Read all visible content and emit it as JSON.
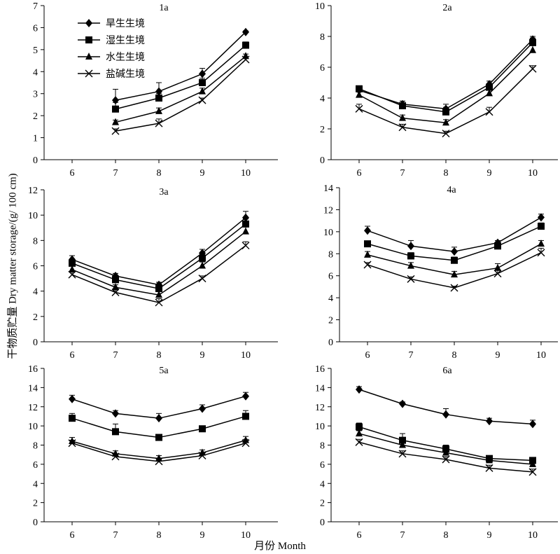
{
  "y_axis_label": "干物质贮量 Dry matter storage/(g/ 100 cm)",
  "x_axis_label": "月份 Month",
  "chart_data": [
    {
      "type": "line",
      "title": "1a",
      "x": [
        6,
        7,
        8,
        9,
        10
      ],
      "ylim": [
        0,
        7
      ],
      "yticks": [
        0,
        1,
        2,
        3,
        4,
        5,
        6,
        7
      ],
      "legend": "top-left",
      "series": [
        {
          "name": "旱生生境",
          "marker": "diamond",
          "values": [
            null,
            2.7,
            3.1,
            3.9,
            5.8
          ],
          "errors": [
            null,
            0.5,
            0.4,
            0.25,
            0.05
          ]
        },
        {
          "name": "湿生生境",
          "marker": "square",
          "values": [
            null,
            2.3,
            2.8,
            3.5,
            5.2
          ],
          "errors": [
            null,
            0.3,
            0.2,
            0.2,
            0.15
          ]
        },
        {
          "name": "水生生境",
          "marker": "triangle",
          "values": [
            null,
            1.7,
            2.2,
            3.1,
            4.7
          ],
          "errors": [
            null,
            0.1,
            0.15,
            0.15,
            0.1
          ]
        },
        {
          "name": "盐碱生境",
          "marker": "cross",
          "values": [
            null,
            1.3,
            1.65,
            2.7,
            4.55
          ],
          "errors": [
            null,
            0.1,
            0.2,
            0.1,
            0.1
          ]
        }
      ]
    },
    {
      "type": "line",
      "title": "2a",
      "x": [
        6,
        7,
        8,
        9,
        10
      ],
      "ylim": [
        0,
        10
      ],
      "yticks": [
        0,
        2,
        4,
        6,
        8,
        10
      ],
      "series": [
        {
          "name": "旱生生境",
          "marker": "diamond",
          "values": [
            4.5,
            3.6,
            3.3,
            4.9,
            7.8
          ],
          "errors": [
            0.25,
            0.2,
            0.3,
            0.2,
            0.2
          ]
        },
        {
          "name": "湿生生境",
          "marker": "square",
          "values": [
            4.6,
            3.5,
            3.1,
            4.7,
            7.6
          ],
          "errors": [
            0.2,
            0.3,
            0.3,
            0.2,
            0.3
          ]
        },
        {
          "name": "水生生境",
          "marker": "triangle",
          "values": [
            4.2,
            2.7,
            2.4,
            4.3,
            7.1
          ],
          "errors": [
            0.2,
            0.2,
            0.2,
            0.2,
            0.3
          ]
        },
        {
          "name": "盐碱生境",
          "marker": "cross",
          "values": [
            3.3,
            2.1,
            1.7,
            3.1,
            5.9
          ],
          "errors": [
            0.3,
            0.2,
            0.15,
            0.3,
            0.2
          ]
        }
      ]
    },
    {
      "type": "line",
      "title": "3a",
      "x": [
        6,
        7,
        8,
        9,
        10
      ],
      "ylim": [
        0,
        12
      ],
      "yticks": [
        0,
        2,
        4,
        6,
        8,
        10,
        12
      ],
      "series": [
        {
          "name": "旱生生境",
          "marker": "diamond",
          "values": [
            6.5,
            5.2,
            4.5,
            7.0,
            9.8
          ],
          "errors": [
            0.3,
            0.2,
            0.2,
            0.3,
            0.5
          ]
        },
        {
          "name": "湿生生境",
          "marker": "square",
          "values": [
            6.2,
            4.9,
            4.2,
            6.6,
            9.3
          ],
          "errors": [
            0.3,
            0.2,
            0.3,
            0.3,
            0.4
          ]
        },
        {
          "name": "水生生境",
          "marker": "triangle",
          "values": [
            5.7,
            4.3,
            3.7,
            6.0,
            8.7
          ],
          "errors": [
            0.3,
            0.2,
            0.3,
            0.3,
            0.4
          ]
        },
        {
          "name": "盐碱生境",
          "marker": "cross",
          "values": [
            5.3,
            3.9,
            3.1,
            5.0,
            7.6
          ],
          "errors": [
            0.2,
            0.2,
            0.3,
            0.2,
            0.3
          ]
        }
      ]
    },
    {
      "type": "line",
      "title": "4a",
      "x": [
        6,
        7,
        8,
        9,
        10
      ],
      "ylim": [
        0,
        14
      ],
      "yticks": [
        0,
        2,
        4,
        6,
        8,
        10,
        12,
        14
      ],
      "series": [
        {
          "name": "旱生生境",
          "marker": "diamond",
          "values": [
            10.1,
            8.7,
            8.2,
            9.0,
            11.3
          ],
          "errors": [
            0.4,
            0.5,
            0.4,
            0.2,
            0.3
          ]
        },
        {
          "name": "湿生生境",
          "marker": "square",
          "values": [
            8.9,
            7.8,
            7.4,
            8.7,
            10.5
          ],
          "errors": [
            0.2,
            0.3,
            0.3,
            0.3,
            0.3
          ]
        },
        {
          "name": "水生生境",
          "marker": "triangle",
          "values": [
            7.9,
            6.9,
            6.1,
            6.7,
            8.9
          ],
          "errors": [
            0.3,
            0.3,
            0.3,
            0.4,
            0.3
          ]
        },
        {
          "name": "盐碱生境",
          "marker": "cross",
          "values": [
            7.0,
            5.7,
            4.9,
            6.2,
            8.1
          ],
          "errors": [
            0.2,
            0.2,
            0.15,
            0.3,
            0.4
          ]
        }
      ]
    },
    {
      "type": "line",
      "title": "5a",
      "x": [
        6,
        7,
        8,
        9,
        10
      ],
      "ylim": [
        0,
        16
      ],
      "yticks": [
        0,
        2,
        4,
        6,
        8,
        10,
        12,
        14,
        16
      ],
      "series": [
        {
          "name": "旱生生境",
          "marker": "diamond",
          "values": [
            12.8,
            11.3,
            10.8,
            11.8,
            13.1
          ],
          "errors": [
            0.4,
            0.3,
            0.5,
            0.4,
            0.4
          ]
        },
        {
          "name": "湿生生境",
          "marker": "square",
          "values": [
            10.8,
            9.4,
            8.8,
            9.7,
            11.0
          ],
          "errors": [
            0.5,
            0.8,
            0.3,
            0.3,
            0.6
          ]
        },
        {
          "name": "水生生境",
          "marker": "triangle",
          "values": [
            8.4,
            7.1,
            6.6,
            7.2,
            8.5
          ],
          "errors": [
            0.4,
            0.3,
            0.3,
            0.3,
            0.4
          ]
        },
        {
          "name": "盐碱生境",
          "marker": "cross",
          "values": [
            8.2,
            6.8,
            6.3,
            6.9,
            8.2
          ],
          "errors": [
            0.3,
            0.2,
            0.3,
            0.3,
            0.4
          ]
        }
      ]
    },
    {
      "type": "line",
      "title": "6a",
      "x": [
        6,
        7,
        8,
        9,
        10
      ],
      "ylim": [
        0,
        16
      ],
      "yticks": [
        0,
        2,
        4,
        6,
        8,
        10,
        12,
        14,
        16
      ],
      "series": [
        {
          "name": "旱生生境",
          "marker": "diamond",
          "values": [
            13.8,
            12.3,
            11.2,
            10.5,
            10.2
          ],
          "errors": [
            0.3,
            0.2,
            0.6,
            0.3,
            0.4
          ]
        },
        {
          "name": "湿生生境",
          "marker": "square",
          "values": [
            9.9,
            8.5,
            7.6,
            6.6,
            6.4
          ],
          "errors": [
            0.4,
            0.7,
            0.4,
            0.3,
            0.3
          ]
        },
        {
          "name": "水生生境",
          "marker": "triangle",
          "values": [
            9.2,
            8.0,
            7.2,
            6.4,
            6.0
          ],
          "errors": [
            0.3,
            0.4,
            0.3,
            0.3,
            0.3
          ]
        },
        {
          "name": "盐碱生境",
          "marker": "cross",
          "values": [
            8.3,
            7.1,
            6.5,
            5.6,
            5.2
          ],
          "errors": [
            0.3,
            0.3,
            0.3,
            0.3,
            0.3
          ]
        }
      ]
    }
  ]
}
